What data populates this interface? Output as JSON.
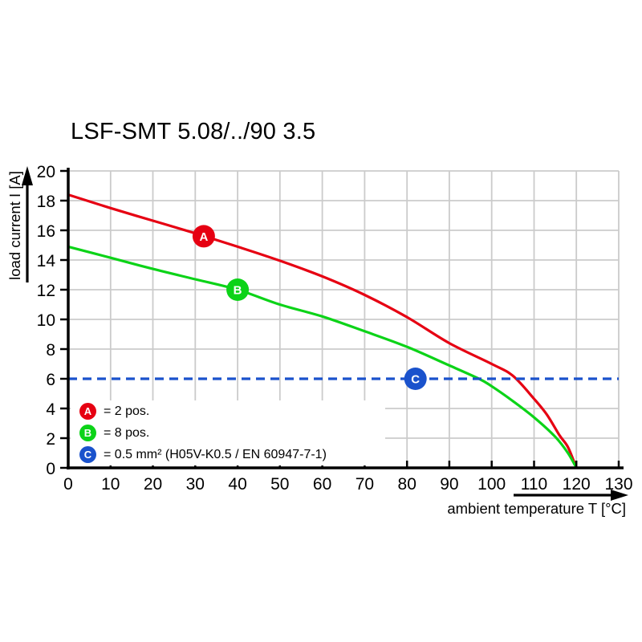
{
  "chart_data": {
    "type": "line",
    "title": "LSF-SMT 5.08/../90 3.5",
    "xlabel": "ambient temperature T [°C]",
    "ylabel": "load current I [A]",
    "xlim": [
      0,
      130
    ],
    "ylim": [
      0,
      20
    ],
    "xticks": [
      0,
      10,
      20,
      30,
      40,
      50,
      60,
      70,
      80,
      90,
      100,
      110,
      120,
      130
    ],
    "yticks": [
      0,
      2,
      4,
      6,
      8,
      10,
      12,
      14,
      16,
      18,
      20
    ],
    "grid": true,
    "legend_position": "inside-bottom-left",
    "series": [
      {
        "marker_label": "A",
        "legend_label": "= 2 pos.",
        "color": "#e60012",
        "dashed": false,
        "marker": {
          "x": 32,
          "y": 15.6
        },
        "points": [
          [
            0,
            18.4
          ],
          [
            10,
            17.5
          ],
          [
            20,
            16.65
          ],
          [
            30,
            15.8
          ],
          [
            40,
            14.9
          ],
          [
            50,
            13.95
          ],
          [
            60,
            12.9
          ],
          [
            70,
            11.65
          ],
          [
            80,
            10.15
          ],
          [
            90,
            8.4
          ],
          [
            100,
            7.0
          ],
          [
            105,
            6.2
          ],
          [
            110,
            4.65
          ],
          [
            113,
            3.6
          ],
          [
            116,
            2.2
          ],
          [
            118,
            1.4
          ],
          [
            120,
            0
          ]
        ]
      },
      {
        "marker_label": "B",
        "legend_label": "= 8 pos.",
        "color": "#0cd318",
        "dashed": false,
        "marker": {
          "x": 40,
          "y": 12
        },
        "points": [
          [
            0,
            14.9
          ],
          [
            10,
            14.15
          ],
          [
            20,
            13.4
          ],
          [
            30,
            12.7
          ],
          [
            40,
            12.0
          ],
          [
            50,
            11.0
          ],
          [
            60,
            10.2
          ],
          [
            70,
            9.2
          ],
          [
            80,
            8.15
          ],
          [
            90,
            6.9
          ],
          [
            97,
            6.0
          ],
          [
            100,
            5.5
          ],
          [
            105,
            4.5
          ],
          [
            110,
            3.4
          ],
          [
            115,
            2.1
          ],
          [
            118,
            1.0
          ],
          [
            120,
            0
          ]
        ]
      },
      {
        "marker_label": "C",
        "legend_label": "= 0.5 mm² (H05V-K0.5 / EN 60947-7-1)",
        "color": "#1a52cc",
        "dashed": true,
        "marker": {
          "x": 82,
          "y": 6
        },
        "points": [
          [
            0,
            6
          ],
          [
            130,
            6
          ]
        ]
      }
    ]
  },
  "colors": {
    "curve_a_red": "#e60012",
    "curve_b_green": "#0cd318",
    "line_c_blue": "#1a52cc",
    "grid": "#cbcbcb",
    "axis": "#000000",
    "background": "#ffffff"
  }
}
